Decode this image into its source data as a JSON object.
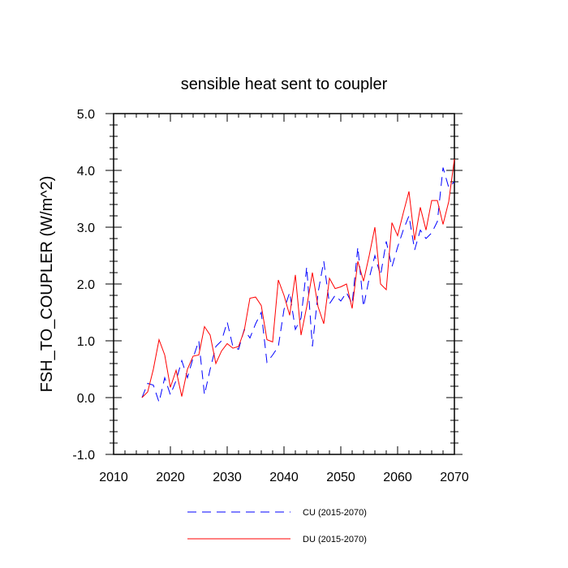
{
  "chart_data": {
    "type": "line",
    "title": "sensible heat sent to coupler",
    "ylabel": "FSH_TO_COUPLER  (W/m^2)",
    "xlabel": "",
    "xlim": [
      2010,
      2070
    ],
    "ylim": [
      -1.0,
      5.0
    ],
    "xticks": [
      2010,
      2020,
      2030,
      2040,
      2050,
      2060,
      2070
    ],
    "xtick_labels": [
      "2010",
      "2020",
      "2030",
      "2040",
      "2050",
      "2060",
      "2070"
    ],
    "yticks": [
      -1.0,
      0.0,
      1.0,
      2.0,
      3.0,
      4.0,
      5.0
    ],
    "ytick_labels": [
      "-1.0",
      "0.0",
      "1.0",
      "2.0",
      "3.0",
      "4.0",
      "5.0"
    ],
    "grid": false,
    "legend_position": "bottom-center",
    "x": [
      2015,
      2016,
      2017,
      2018,
      2019,
      2020,
      2021,
      2022,
      2023,
      2024,
      2025,
      2026,
      2027,
      2028,
      2029,
      2030,
      2031,
      2032,
      2033,
      2034,
      2035,
      2036,
      2037,
      2038,
      2039,
      2040,
      2041,
      2042,
      2043,
      2044,
      2045,
      2046,
      2047,
      2048,
      2049,
      2050,
      2051,
      2052,
      2053,
      2054,
      2055,
      2056,
      2057,
      2058,
      2059,
      2060,
      2061,
      2062,
      2063,
      2064,
      2065,
      2066,
      2067,
      2068,
      2069,
      2070
    ],
    "series": [
      {
        "name": "CU (2015-2070)",
        "color": "#0000ff",
        "dash": "dashed",
        "values": [
          0.0,
          0.25,
          0.22,
          -0.08,
          0.35,
          0.05,
          0.3,
          0.65,
          0.35,
          0.7,
          1.0,
          0.05,
          0.5,
          0.9,
          1.0,
          1.33,
          0.9,
          0.85,
          1.2,
          1.05,
          1.3,
          1.5,
          0.62,
          0.75,
          0.9,
          1.55,
          1.85,
          1.2,
          1.4,
          2.3,
          0.9,
          1.85,
          2.4,
          1.65,
          1.8,
          1.7,
          1.85,
          1.65,
          2.65,
          1.6,
          2.1,
          2.5,
          2.15,
          2.75,
          2.3,
          2.65,
          2.95,
          3.2,
          2.6,
          2.95,
          2.8,
          2.9,
          3.1,
          4.05,
          3.7,
          3.8
        ]
      },
      {
        "name": "DU (2015-2070)",
        "color": "#ff0000",
        "dash": "solid",
        "values": [
          0.0,
          0.1,
          0.5,
          1.02,
          0.75,
          0.18,
          0.48,
          0.02,
          0.5,
          0.73,
          0.75,
          1.25,
          1.1,
          0.6,
          0.82,
          0.95,
          0.87,
          0.9,
          1.18,
          1.75,
          1.77,
          1.62,
          1.02,
          0.98,
          2.07,
          1.8,
          1.45,
          2.16,
          1.1,
          1.6,
          2.2,
          1.6,
          1.3,
          2.1,
          1.92,
          1.95,
          2.0,
          1.57,
          2.4,
          2.05,
          2.5,
          3.0,
          2.0,
          1.9,
          3.08,
          2.85,
          3.25,
          3.63,
          2.77,
          3.35,
          2.95,
          3.47,
          3.47,
          3.05,
          3.45,
          4.2
        ]
      }
    ]
  }
}
